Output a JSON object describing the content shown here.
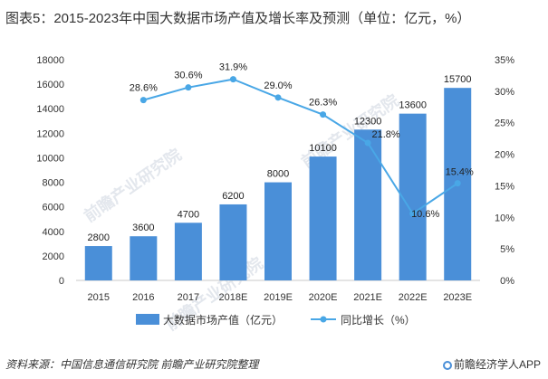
{
  "title": "图表5：2015-2023年中国大数据市场产值及增长率及预测（单位：亿元，%）",
  "footer": {
    "source": "资料来源：中国信息通信研究院 前瞻产业研究院整理",
    "brand": "前瞻经济学人APP"
  },
  "watermark": "前瞻产业研究院",
  "colors": {
    "bar": "#4a8fd8",
    "line": "#49a7e6",
    "axis": "#c8c8c8"
  },
  "chart_data": {
    "type": "bar",
    "categories": [
      "2015",
      "2016",
      "2017",
      "2018E",
      "2019E",
      "2020E",
      "2021E",
      "2022E",
      "2023E"
    ],
    "series": [
      {
        "name": "大数据市场产值（亿元）",
        "type": "bar",
        "axis": "left",
        "values": [
          2800,
          3600,
          4700,
          6200,
          8000,
          10100,
          12300,
          13600,
          15700
        ],
        "labels": [
          "2800",
          "3600",
          "4700",
          "6200",
          "8000",
          "10100",
          "12300",
          "13600",
          "15700"
        ]
      },
      {
        "name": "同比增长（%）",
        "type": "line",
        "axis": "right",
        "values": [
          null,
          28.6,
          30.6,
          31.9,
          29.0,
          26.3,
          21.8,
          10.6,
          15.4
        ],
        "labels": [
          "",
          "28.6%",
          "30.6%",
          "31.9%",
          "29.0%",
          "26.3%",
          "21.8%",
          "10.6%",
          "15.4%"
        ]
      }
    ],
    "ylim_left": [
      0,
      18000
    ],
    "yticks_left": [
      "0",
      "2000",
      "4000",
      "6000",
      "8000",
      "10000",
      "12000",
      "14000",
      "16000",
      "18000"
    ],
    "ylim_right": [
      0,
      35
    ],
    "yticks_right": [
      "0%",
      "5%",
      "10%",
      "15%",
      "20%",
      "25%",
      "30%",
      "35%"
    ],
    "legend_position": "bottom",
    "grid": false
  }
}
